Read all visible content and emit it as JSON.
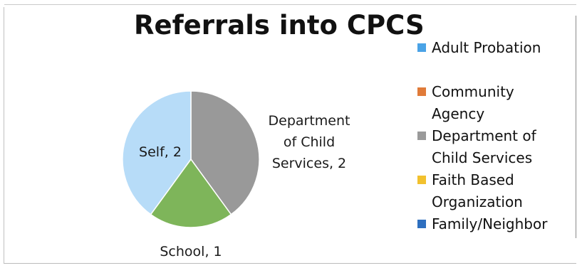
{
  "chart_data": {
    "type": "pie",
    "title": "Referrals into CPCS",
    "slices": [
      {
        "name": "Department of Child Services",
        "value": 2,
        "label": "Department\nof Child\nServices, 2",
        "color": "#999999"
      },
      {
        "name": "School",
        "value": 1,
        "label": "School, 1",
        "color": "#7eb55a"
      },
      {
        "name": "Self",
        "value": 2,
        "label": "Self, 2",
        "color": "#b7dcf8"
      }
    ],
    "legend_position": "right",
    "legend": [
      {
        "label": "Adult Probation",
        "color": "#4aa3e6"
      },
      {
        "label": "Community\nAgency",
        "color": "#e07b39"
      },
      {
        "label": "Department of\nChild Services",
        "color": "#9a9a9a"
      },
      {
        "label": "Faith Based\nOrganization",
        "color": "#f2c12e"
      },
      {
        "label": "Family/Neighbor",
        "color": "#2e6fbf"
      }
    ]
  }
}
